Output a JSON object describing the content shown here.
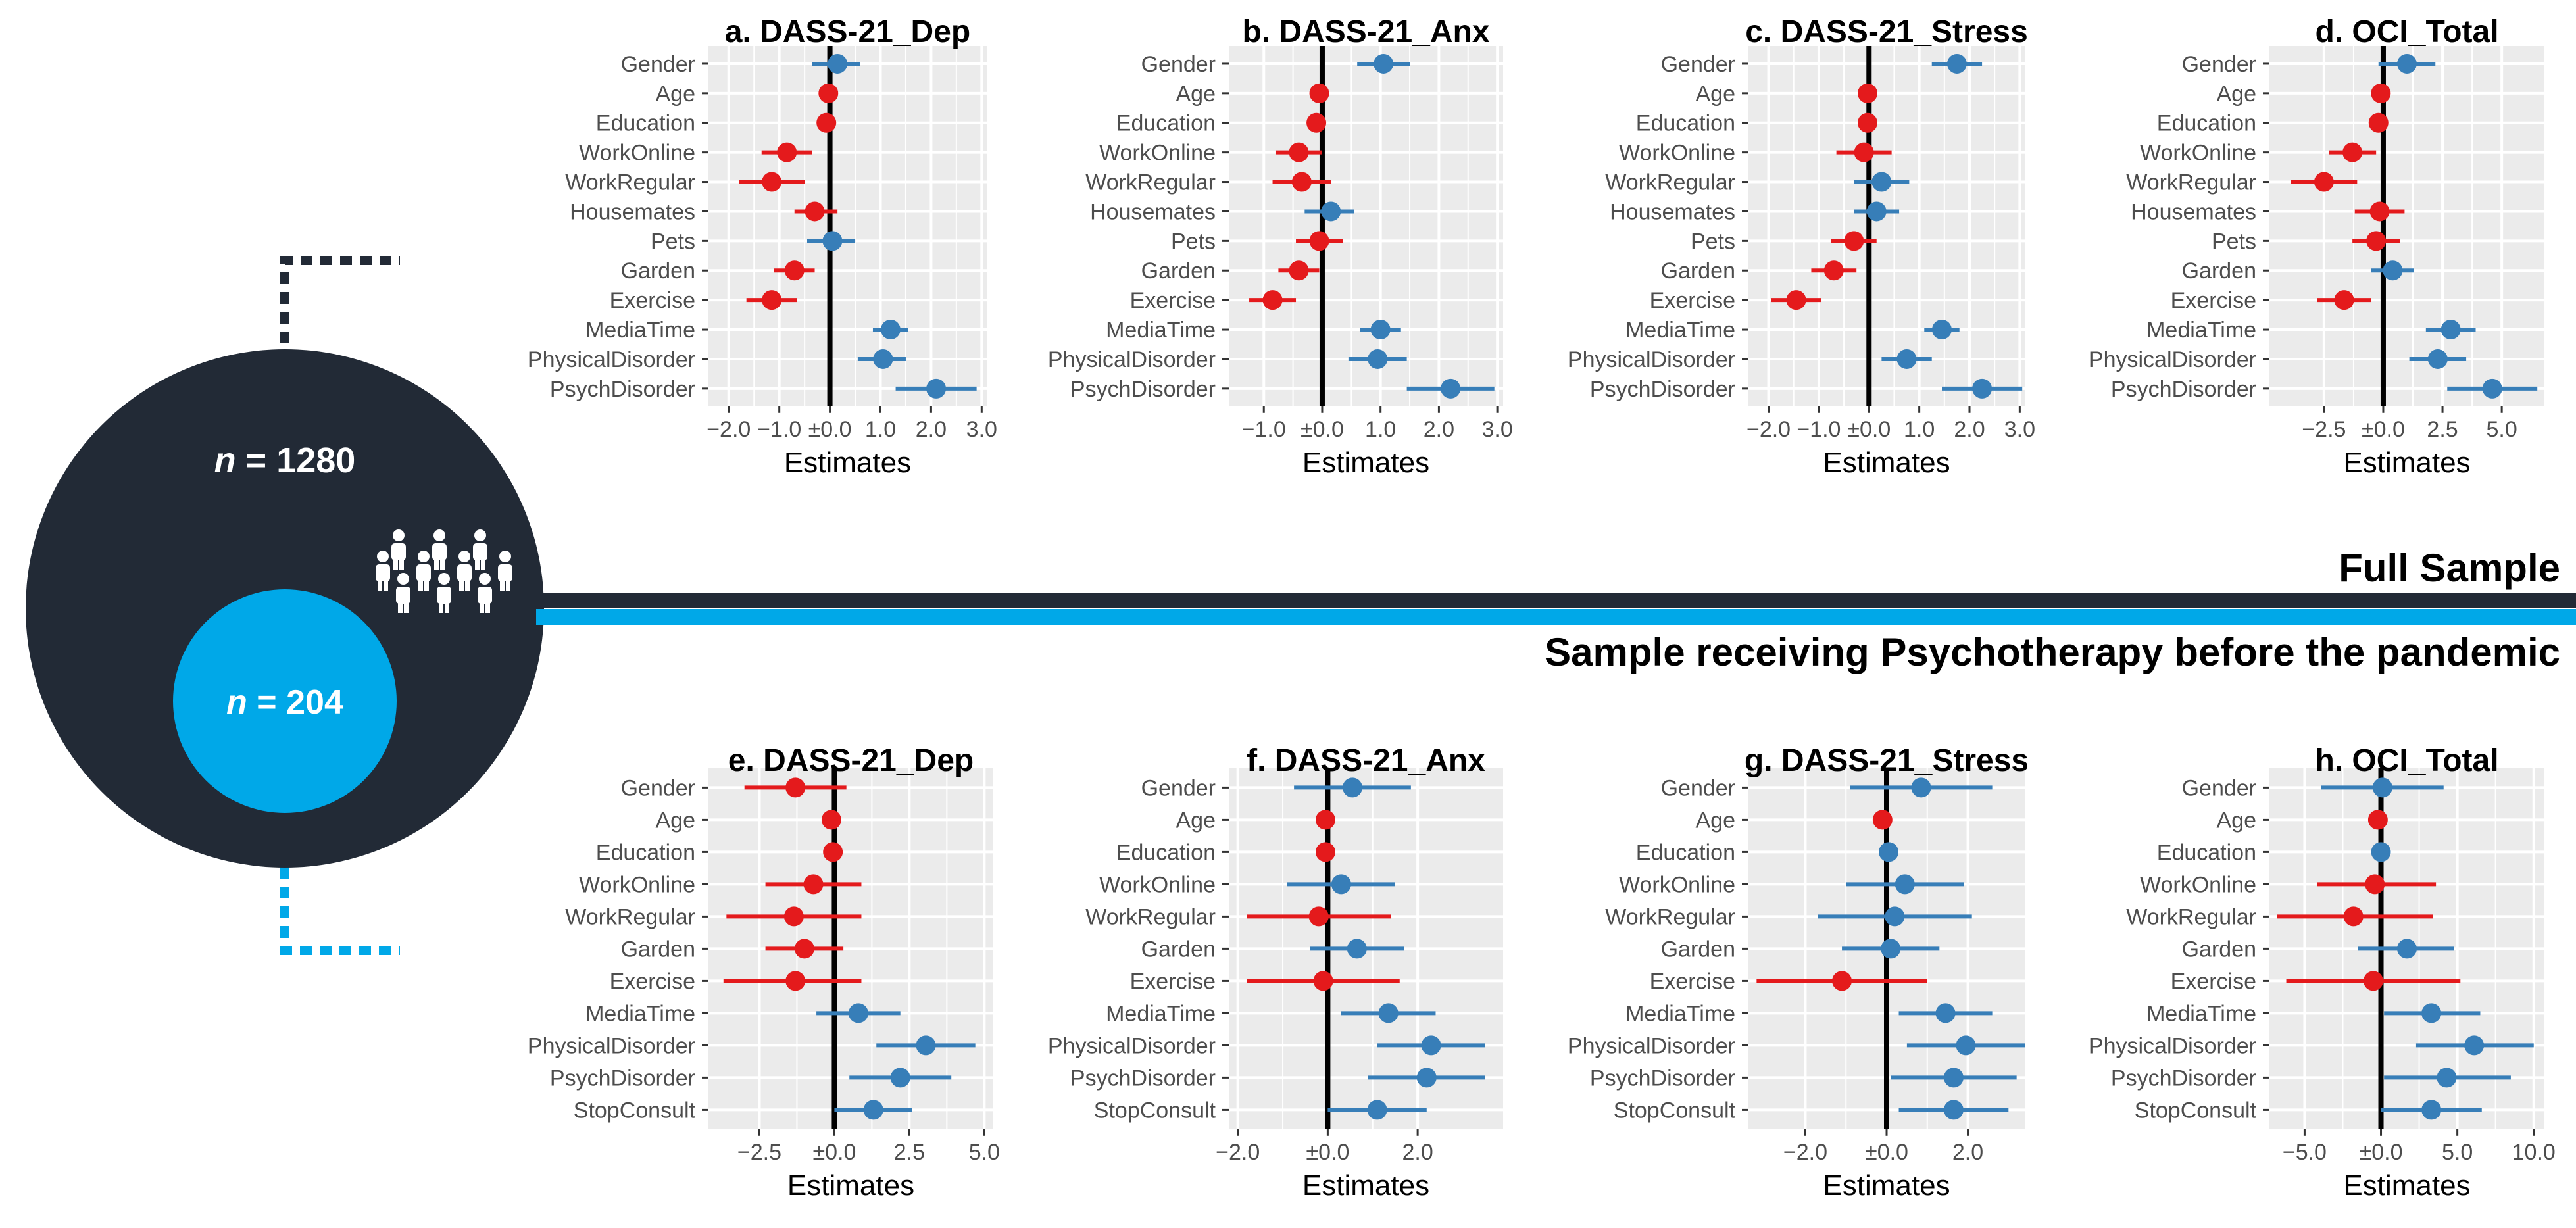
{
  "colors": {
    "negative": "#e41a1c",
    "positive": "#377eb8",
    "panel_bg": "#ebebeb",
    "grid": "#ffffff",
    "dark": "#222a36",
    "cyan": "#00a8e8"
  },
  "labels": {
    "full_sample": "Full Sample",
    "psych_sample": "Sample receiving Psychotherapy before the pandemic",
    "n_full_prefix": "n",
    "n_full_value": " = 1280",
    "n_psych_prefix": "n",
    "n_psych_value": " = 204",
    "people_icon": "people-group-icon"
  },
  "chart_data": [
    {
      "type": "forest",
      "title": "a. DASS-21_Dep",
      "xlabel": "Estimates",
      "xlim": [
        -2.4,
        3.1
      ],
      "xticks": [
        -2,
        -1,
        0,
        1,
        2,
        3
      ],
      "xtick_labels": [
        "−2.0",
        "−1.0",
        "±0.0",
        "1.0",
        "2.0",
        "3.0"
      ],
      "categories": [
        "Gender",
        "Age",
        "Education",
        "WorkOnline",
        "WorkRegular",
        "Housemates",
        "Pets",
        "Garden",
        "Exercise",
        "MediaTime",
        "PhysicalDisorder",
        "PsychDisorder"
      ],
      "estimates": [
        0.15,
        -0.03,
        -0.07,
        -0.85,
        -1.15,
        -0.3,
        0.05,
        -0.7,
        -1.15,
        1.2,
        1.05,
        2.1
      ],
      "ci_low": [
        -0.35,
        -0.1,
        -0.15,
        -1.35,
        -1.8,
        -0.7,
        -0.45,
        -1.1,
        -1.65,
        0.85,
        0.55,
        1.3
      ],
      "ci_high": [
        0.6,
        0.05,
        0.02,
        -0.35,
        -0.5,
        0.15,
        0.5,
        -0.3,
        -0.65,
        1.55,
        1.5,
        2.9
      ]
    },
    {
      "type": "forest",
      "title": "b. DASS-21_Anx",
      "xlabel": "Estimates",
      "xlim": [
        -1.6,
        3.1
      ],
      "xticks": [
        -1,
        0,
        1,
        2,
        3
      ],
      "xtick_labels": [
        "−1.0",
        "±0.0",
        "1.0",
        "2.0",
        "3.0"
      ],
      "categories": [
        "Gender",
        "Age",
        "Education",
        "WorkOnline",
        "WorkRegular",
        "Housemates",
        "Pets",
        "Garden",
        "Exercise",
        "MediaTime",
        "PhysicalDisorder",
        "PsychDisorder"
      ],
      "estimates": [
        1.05,
        -0.05,
        -0.1,
        -0.4,
        -0.35,
        0.15,
        -0.05,
        -0.4,
        -0.85,
        1.0,
        0.95,
        2.2
      ],
      "ci_low": [
        0.6,
        -0.12,
        -0.2,
        -0.8,
        -0.85,
        -0.3,
        -0.45,
        -0.75,
        -1.25,
        0.65,
        0.45,
        1.45
      ],
      "ci_high": [
        1.5,
        0.03,
        0.0,
        0.0,
        0.15,
        0.55,
        0.35,
        -0.05,
        -0.45,
        1.35,
        1.45,
        2.95
      ]
    },
    {
      "type": "forest",
      "title": "c. DASS-21_Stress",
      "xlabel": "Estimates",
      "xlim": [
        -2.4,
        3.1
      ],
      "xticks": [
        -2,
        -1,
        0,
        1,
        2,
        3
      ],
      "xtick_labels": [
        "−2.0",
        "−1.0",
        "±0.0",
        "1.0",
        "2.0",
        "3.0"
      ],
      "categories": [
        "Gender",
        "Age",
        "Education",
        "WorkOnline",
        "WorkRegular",
        "Housemates",
        "Pets",
        "Garden",
        "Exercise",
        "MediaTime",
        "PhysicalDisorder",
        "PsychDisorder"
      ],
      "estimates": [
        1.75,
        -0.03,
        -0.03,
        -0.1,
        0.25,
        0.15,
        -0.3,
        -0.7,
        -1.45,
        1.45,
        0.75,
        2.25
      ],
      "ci_low": [
        1.25,
        -0.1,
        -0.12,
        -0.65,
        -0.3,
        -0.3,
        -0.75,
        -1.15,
        -1.95,
        1.1,
        0.25,
        1.45
      ],
      "ci_high": [
        2.25,
        0.05,
        0.05,
        0.45,
        0.8,
        0.6,
        0.15,
        -0.25,
        -0.95,
        1.8,
        1.25,
        3.05
      ]
    },
    {
      "type": "forest",
      "title": "d. OCI_Total",
      "xlabel": "Estimates",
      "xlim": [
        -4.8,
        6.8
      ],
      "xticks": [
        -2.5,
        0,
        2.5,
        5
      ],
      "xtick_labels": [
        "−2.5",
        "±0.0",
        "2.5",
        "5.0"
      ],
      "categories": [
        "Gender",
        "Age",
        "Education",
        "WorkOnline",
        "WorkRegular",
        "Housemates",
        "Pets",
        "Garden",
        "Exercise",
        "MediaTime",
        "PhysicalDisorder",
        "PsychDisorder"
      ],
      "estimates": [
        1.0,
        -0.1,
        -0.2,
        -1.3,
        -2.5,
        -0.15,
        -0.3,
        0.4,
        -1.65,
        2.85,
        2.3,
        4.6
      ],
      "ci_low": [
        -0.2,
        -0.3,
        -0.4,
        -2.3,
        -3.9,
        -1.2,
        -1.3,
        -0.5,
        -2.8,
        1.8,
        1.1,
        2.7
      ],
      "ci_high": [
        2.2,
        0.1,
        0.0,
        -0.3,
        -1.1,
        0.9,
        0.7,
        1.3,
        -0.5,
        3.9,
        3.5,
        6.5
      ]
    },
    {
      "type": "forest",
      "title": "e. DASS-21_Dep",
      "xlabel": "Estimates",
      "xlim": [
        -4.2,
        5.3
      ],
      "xticks": [
        -2.5,
        0,
        2.5,
        5
      ],
      "xtick_labels": [
        "−2.5",
        "±0.0",
        "2.5",
        "5.0"
      ],
      "categories": [
        "Gender",
        "Age",
        "Education",
        "WorkOnline",
        "WorkRegular",
        "Garden",
        "Exercise",
        "MediaTime",
        "PhysicalDisorder",
        "PsychDisorder",
        "StopConsult"
      ],
      "estimates": [
        -1.3,
        -0.1,
        -0.05,
        -0.7,
        -1.35,
        -1.0,
        -1.3,
        0.8,
        3.05,
        2.2,
        1.3
      ],
      "ci_low": [
        -3.0,
        -0.25,
        -0.2,
        -2.3,
        -3.6,
        -2.3,
        -3.7,
        -0.6,
        1.4,
        0.5,
        0.0
      ],
      "ci_high": [
        0.4,
        0.05,
        0.1,
        0.9,
        0.9,
        0.3,
        0.9,
        2.2,
        4.7,
        3.9,
        2.6
      ]
    },
    {
      "type": "forest",
      "title": "f. DASS-21_Anx",
      "xlabel": "Estimates",
      "xlim": [
        -2.2,
        3.9
      ],
      "xticks": [
        -2,
        0,
        2
      ],
      "xtick_labels": [
        "−2.0",
        "±0.0",
        "2.0"
      ],
      "categories": [
        "Gender",
        "Age",
        "Education",
        "WorkOnline",
        "WorkRegular",
        "Garden",
        "Exercise",
        "MediaTime",
        "PhysicalDisorder",
        "PsychDisorder",
        "StopConsult"
      ],
      "estimates": [
        0.55,
        -0.05,
        -0.05,
        0.3,
        -0.2,
        0.65,
        -0.1,
        1.35,
        2.3,
        2.2,
        1.1
      ],
      "ci_low": [
        -0.75,
        -0.12,
        -0.12,
        -0.9,
        -1.8,
        -0.4,
        -1.8,
        0.3,
        1.1,
        0.9,
        0.0
      ],
      "ci_high": [
        1.85,
        0.02,
        0.02,
        1.5,
        1.4,
        1.7,
        1.6,
        2.4,
        3.5,
        3.5,
        2.2
      ]
    },
    {
      "type": "forest",
      "title": "g. DASS-21_Stress",
      "xlabel": "Estimates",
      "xlim": [
        -3.4,
        3.4
      ],
      "xticks": [
        -2,
        0,
        2
      ],
      "xtick_labels": [
        "−2.0",
        "±0.0",
        "2.0"
      ],
      "categories": [
        "Gender",
        "Age",
        "Education",
        "WorkOnline",
        "WorkRegular",
        "Garden",
        "Exercise",
        "MediaTime",
        "PhysicalDisorder",
        "PsychDisorder",
        "StopConsult"
      ],
      "estimates": [
        0.85,
        -0.1,
        0.05,
        0.45,
        0.2,
        0.1,
        -1.1,
        1.45,
        1.95,
        1.65,
        1.65
      ],
      "ci_low": [
        -0.9,
        -0.2,
        -0.05,
        -1.0,
        -1.7,
        -1.1,
        -3.2,
        0.3,
        0.5,
        0.1,
        0.3
      ],
      "ci_high": [
        2.6,
        0.0,
        0.15,
        1.9,
        2.1,
        1.3,
        1.0,
        2.6,
        3.4,
        3.2,
        3.0
      ]
    },
    {
      "type": "forest",
      "title": "h. OCI_Total",
      "xlabel": "Estimates",
      "xlim": [
        -7.3,
        10.7
      ],
      "xticks": [
        -5,
        0,
        5,
        10
      ],
      "xtick_labels": [
        "−5.0",
        "±0.0",
        "5.0",
        "10.0"
      ],
      "categories": [
        "Gender",
        "Age",
        "Education",
        "WorkOnline",
        "WorkRegular",
        "Garden",
        "Exercise",
        "MediaTime",
        "PhysicalDisorder",
        "PsychDisorder",
        "StopConsult"
      ],
      "estimates": [
        0.1,
        -0.2,
        0.0,
        -0.4,
        -1.8,
        1.7,
        -0.5,
        3.3,
        6.1,
        4.3,
        3.3
      ],
      "ci_low": [
        -3.9,
        -0.5,
        -0.3,
        -4.2,
        -6.8,
        -1.5,
        -6.2,
        0.2,
        2.3,
        0.2,
        0.0
      ],
      "ci_high": [
        4.1,
        0.1,
        0.3,
        3.6,
        3.4,
        4.8,
        5.2,
        6.5,
        10.0,
        8.5,
        6.6
      ]
    }
  ]
}
